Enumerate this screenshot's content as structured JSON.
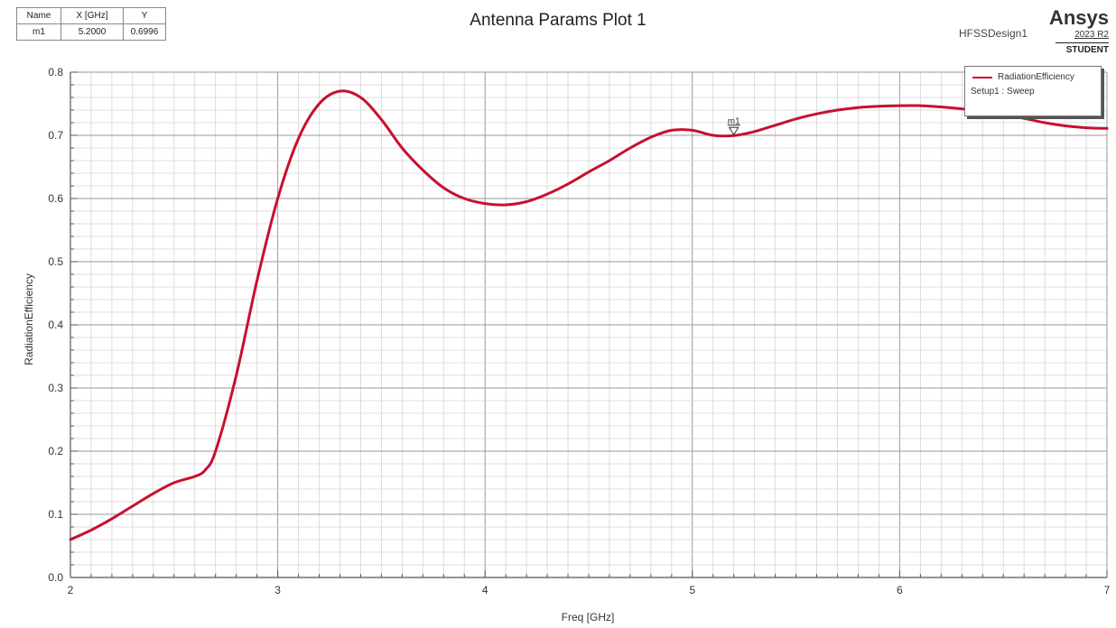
{
  "marker_table": {
    "headers": [
      "Name",
      "X [GHz]",
      "Y"
    ],
    "rows": [
      {
        "name": "m1",
        "x": "5.2000",
        "y": "0.6996"
      }
    ]
  },
  "header": {
    "design_name": "HFSSDesign1",
    "brand_name": "Ansys",
    "brand_version": "2023 R2",
    "brand_edition": "STUDENT"
  },
  "legend": {
    "series_label": "RadiationEfficiency",
    "setup_label": "Setup1 : Sweep"
  },
  "marker": {
    "label": "m1",
    "x": 5.2,
    "y": 0.6996
  },
  "colors": {
    "series": "#c8102e",
    "grid": "#d4d4d4",
    "axis": "#555555"
  },
  "chart_data": {
    "type": "line",
    "title": "Antenna Params Plot 1",
    "xlabel": "Freq [GHz]",
    "ylabel": "RadiationEfficiency",
    "xlim": [
      2,
      7
    ],
    "ylim": [
      0,
      0.8
    ],
    "x_ticks": [
      "2",
      "3",
      "4",
      "5",
      "6",
      "7"
    ],
    "y_ticks": [
      "0.0",
      "0.1",
      "0.2",
      "0.3",
      "0.4",
      "0.5",
      "0.6",
      "0.7",
      "0.8"
    ],
    "grid": true,
    "legend_position": "top-right",
    "series": [
      {
        "name": "RadiationEfficiency",
        "x": [
          2.0,
          2.1,
          2.2,
          2.3,
          2.4,
          2.5,
          2.6,
          2.65,
          2.7,
          2.8,
          2.9,
          3.0,
          3.1,
          3.2,
          3.3,
          3.4,
          3.5,
          3.6,
          3.7,
          3.8,
          3.9,
          4.0,
          4.1,
          4.2,
          4.3,
          4.4,
          4.5,
          4.6,
          4.7,
          4.8,
          4.9,
          5.0,
          5.1,
          5.2,
          5.3,
          5.4,
          5.5,
          5.6,
          5.7,
          5.8,
          5.9,
          6.0,
          6.1,
          6.2,
          6.3,
          6.4,
          6.5,
          6.6,
          6.7,
          6.8,
          6.9,
          7.0
        ],
        "y": [
          0.06,
          0.075,
          0.093,
          0.113,
          0.133,
          0.15,
          0.16,
          0.17,
          0.2,
          0.32,
          0.47,
          0.6,
          0.695,
          0.75,
          0.77,
          0.76,
          0.725,
          0.68,
          0.645,
          0.617,
          0.6,
          0.592,
          0.59,
          0.595,
          0.607,
          0.623,
          0.642,
          0.66,
          0.68,
          0.697,
          0.708,
          0.708,
          0.7,
          0.6996,
          0.706,
          0.716,
          0.726,
          0.734,
          0.74,
          0.744,
          0.746,
          0.747,
          0.747,
          0.745,
          0.742,
          0.738,
          0.733,
          0.727,
          0.72,
          0.715,
          0.712,
          0.711
        ]
      }
    ]
  }
}
